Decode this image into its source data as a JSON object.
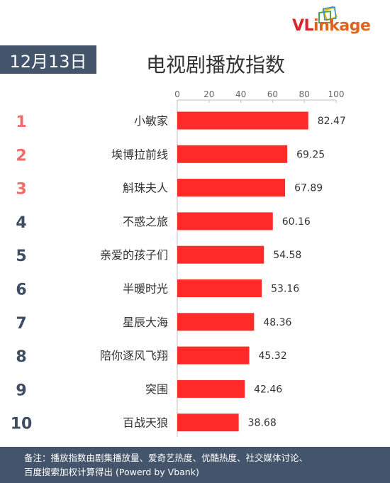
{
  "logo": {
    "text_vl": "VL",
    "text_rest": "inkage"
  },
  "date": "12月13日",
  "title": "电视剧播放指数",
  "footer": {
    "line1": "备注：播放指数由剧集播放量、爱奇艺热度、优酷热度、社交媒体讨论、",
    "line2": "百度搜索加权计算得出 (Powerd by Vbank)"
  },
  "colors": {
    "bar": "#ff2a2a",
    "rank_top3": "#f26b6b",
    "rank_rest": "#3f4d63",
    "badge_bg": "#44546a"
  },
  "chart_data": {
    "type": "bar",
    "orientation": "horizontal",
    "ranks": [
      "1",
      "2",
      "3",
      "4",
      "5",
      "6",
      "7",
      "8",
      "9",
      "10"
    ],
    "categories": [
      "小敏家",
      "埃博拉前线",
      "斛珠夫人",
      "不惑之旅",
      "亲爱的孩子们",
      "半暖时光",
      "星辰大海",
      "陪你逐风飞翔",
      "突围",
      "百战天狼"
    ],
    "values": [
      82.47,
      69.25,
      67.89,
      60.16,
      54.58,
      53.16,
      48.36,
      45.32,
      42.46,
      38.68
    ],
    "value_labels": [
      "82.47",
      "69.25",
      "67.89",
      "60.16",
      "54.58",
      "53.16",
      "48.36",
      "45.32",
      "42.46",
      "38.68"
    ],
    "xlim": [
      0,
      100
    ],
    "xticks": [
      "0",
      "20",
      "40",
      "60",
      "80",
      "100"
    ],
    "axis_position": "top",
    "grid": false
  }
}
